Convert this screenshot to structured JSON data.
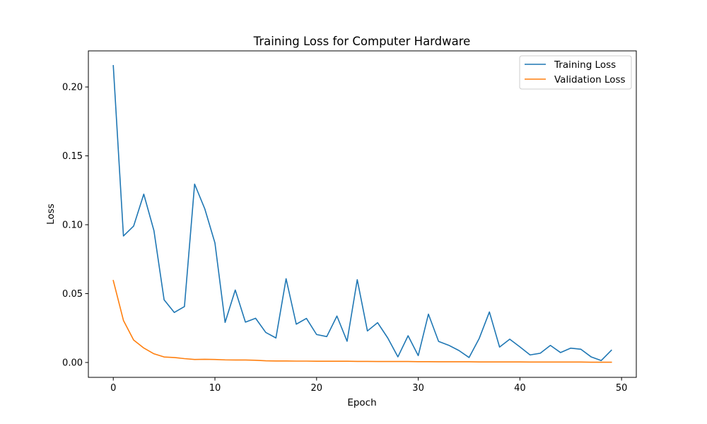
{
  "chart_data": {
    "type": "line",
    "title": "Training Loss for Computer Hardware",
    "xlabel": "Epoch",
    "ylabel": "Loss",
    "xlim": [
      -2.45,
      51.45
    ],
    "ylim": [
      -0.0108,
      0.2262
    ],
    "xticks": [
      0,
      10,
      20,
      30,
      40,
      50
    ],
    "yticks": [
      0.0,
      0.05,
      0.1,
      0.15,
      0.2
    ],
    "ytick_labels": [
      "0.00",
      "0.05",
      "0.10",
      "0.15",
      "0.20"
    ],
    "grid": false,
    "legend_position": "top-right",
    "x": [
      0,
      1,
      2,
      3,
      4,
      5,
      6,
      7,
      8,
      9,
      10,
      11,
      12,
      13,
      14,
      15,
      16,
      17,
      18,
      19,
      20,
      21,
      22,
      23,
      24,
      25,
      26,
      27,
      28,
      29,
      30,
      31,
      32,
      33,
      34,
      35,
      36,
      37,
      38,
      39,
      40,
      41,
      42,
      43,
      44,
      45,
      46,
      47,
      48,
      49
    ],
    "series": [
      {
        "name": "Training Loss",
        "color": "#1f77b4",
        "values": [
          0.2155,
          0.0918,
          0.099,
          0.1222,
          0.0957,
          0.0455,
          0.0363,
          0.0406,
          0.1295,
          0.1116,
          0.0868,
          0.0291,
          0.0526,
          0.0293,
          0.0321,
          0.0218,
          0.0178,
          0.0608,
          0.0278,
          0.032,
          0.0203,
          0.0188,
          0.0337,
          0.0154,
          0.0601,
          0.0229,
          0.0289,
          0.0178,
          0.0041,
          0.0194,
          0.005,
          0.0351,
          0.0153,
          0.0125,
          0.0087,
          0.0036,
          0.0175,
          0.0367,
          0.0112,
          0.0169,
          0.0113,
          0.0055,
          0.0067,
          0.0124,
          0.0072,
          0.0104,
          0.0096,
          0.0041,
          0.0014,
          0.0089
        ]
      },
      {
        "name": "Validation Loss",
        "color": "#ff7f0e",
        "values": [
          0.0595,
          0.0305,
          0.0163,
          0.0105,
          0.0063,
          0.004,
          0.0036,
          0.0028,
          0.0022,
          0.0023,
          0.0022,
          0.0019,
          0.0018,
          0.0018,
          0.0016,
          0.0012,
          0.0011,
          0.0011,
          0.001,
          0.001,
          0.0009,
          0.0009,
          0.0009,
          0.0009,
          0.0008,
          0.0008,
          0.0007,
          0.0007,
          0.0007,
          0.0007,
          0.0006,
          0.0006,
          0.0005,
          0.0005,
          0.0005,
          0.0005,
          0.0004,
          0.0004,
          0.0004,
          0.0004,
          0.0004,
          0.0003,
          0.0003,
          0.0003,
          0.0003,
          0.0003,
          0.0003,
          0.0002,
          0.0002,
          0.0002
        ]
      }
    ]
  }
}
